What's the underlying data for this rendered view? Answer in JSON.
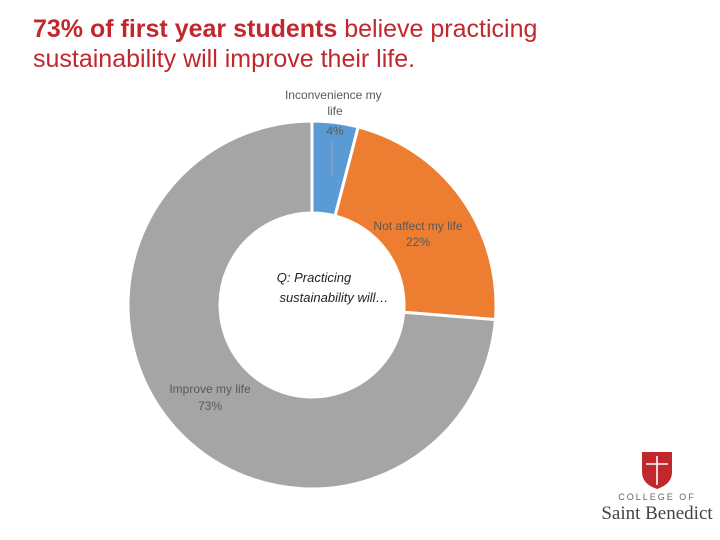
{
  "title": {
    "bold": "73% of first year students",
    "rest": " believe practicing sustainability will improve their life."
  },
  "chart_data": {
    "type": "pie",
    "variant": "donut",
    "center_label": "Q: Practicing sustainability will…",
    "slices": [
      {
        "label": "Inconvenience my life",
        "value": 4,
        "display": "4%",
        "color": "#5b9bd5"
      },
      {
        "label": "Not affect my life",
        "value": 22,
        "display": "22%",
        "color": "#ed7d31"
      },
      {
        "label": "Improve my life",
        "value": 73,
        "display": "73%",
        "color": "#a5a5a5"
      }
    ]
  },
  "logo": {
    "sub": "COLLEGE OF",
    "main": "Saint Benedict",
    "color": "#c0282e"
  }
}
